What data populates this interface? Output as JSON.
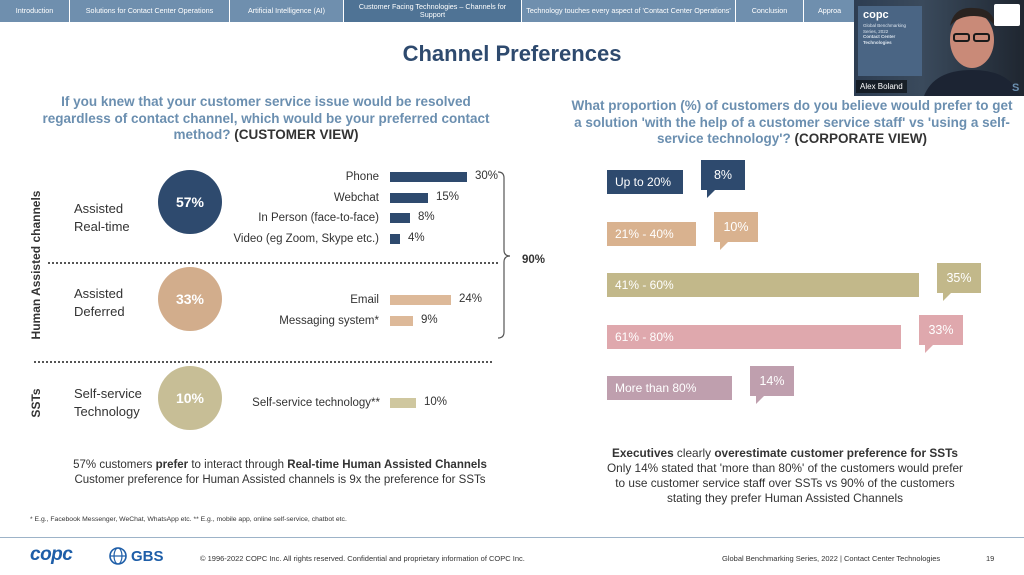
{
  "nav": {
    "tabs": [
      {
        "label": "Introduction"
      },
      {
        "label": "Solutions for Contact Center Operations"
      },
      {
        "label": "Artificial Intelligence (AI)"
      },
      {
        "label": "Customer Facing Technologies – Channels for Support"
      },
      {
        "label": "Technology touches every aspect of 'Contact Center Operations'"
      },
      {
        "label": "Conclusion"
      },
      {
        "label": "Approa"
      }
    ]
  },
  "title": "Channel Preferences",
  "left": {
    "question_main": "If you knew that your customer service issue would be resolved regardless of contact channel, which would be your preferred contact method?",
    "question_view": "(CUSTOMER VIEW)",
    "vertical_label_human": "Human Assisted channels",
    "vertical_label_ssts": "SSTs",
    "bracket_total": "90%",
    "groups": [
      {
        "label_line1": "Assisted",
        "label_line2": "Real-time",
        "pct": "57%",
        "color": "#2e4a6e"
      },
      {
        "label_line1": "Assisted",
        "label_line2": "Deferred",
        "pct": "33%",
        "color": "#d2ad8c"
      },
      {
        "label_line1": "Self-service",
        "label_line2": "Technology",
        "pct": "10%",
        "color": "#c7be96"
      }
    ],
    "bars": [
      {
        "label": "Phone",
        "value": 30,
        "pct": "30%",
        "color": "#2e4a6e"
      },
      {
        "label": "Webchat",
        "value": 15,
        "pct": "15%",
        "color": "#2e4a6e"
      },
      {
        "label": "In Person (face-to-face)",
        "value": 8,
        "pct": "8%",
        "color": "#2e4a6e"
      },
      {
        "label": "Video (eg Zoom, Skype etc.)",
        "value": 4,
        "pct": "4%",
        "color": "#2e4a6e"
      },
      {
        "label": "Email",
        "value": 24,
        "pct": "24%",
        "color": "#ddb999"
      },
      {
        "label": "Messaging system*",
        "value": 9,
        "pct": "9%",
        "color": "#ddb999"
      },
      {
        "label": "Self-service technology**",
        "value": 10,
        "pct": "10%",
        "color": "#cfc79f"
      }
    ],
    "note_line1_a": "57% customers ",
    "note_line1_b": "prefer",
    "note_line1_c": " to interact through ",
    "note_line1_d": "Real-time Human Assisted Channels",
    "note_line2": "Customer preference for Human Assisted channels is 9x the preference for SSTs",
    "footnote": "* E.g., Facebook Messenger, WeChat, WhatsApp etc.  ** E.g., mobile app, online self-service, chatbot etc."
  },
  "right": {
    "question_main": "What proportion (%) of customers do you believe would prefer to get a solution 'with the help of a customer service staff' vs 'using a self-service technology'?",
    "question_view": "(CORPORATE VIEW)",
    "rows": [
      {
        "label": "Up to 20%",
        "value": 8,
        "pct": "8%",
        "color": "#2e4a6e"
      },
      {
        "label": "21% - 40%",
        "value": 10,
        "pct": "10%",
        "color": "#d9b28f"
      },
      {
        "label": "41% - 60%",
        "value": 35,
        "pct": "35%",
        "color": "#c2b88a"
      },
      {
        "label": "61% - 80%",
        "value": 33,
        "pct": "33%",
        "color": "#dfa8ad"
      },
      {
        "label": "More than 80%",
        "value": 14,
        "pct": "14%",
        "color": "#bf9fae"
      }
    ],
    "note_a": "Executives",
    "note_b": " clearly ",
    "note_c": "overestimate customer preference for SSTs",
    "note_line2": "Only 14% stated that 'more than 80%' of the customers would prefer",
    "note_line3": "to use customer service staff over SSTs vs 90% of the customers",
    "note_line4": "stating they prefer Human Assisted Channels"
  },
  "video": {
    "name": "Alex Boland",
    "logo": "copc",
    "card_line1": "Global Benchmarking",
    "card_line2": "Series, 2022",
    "card_line3": "Contact Center",
    "card_line4": "Technologies",
    "suffix": "S"
  },
  "footer": {
    "logo_copc": "copc",
    "logo_gbs": "GBS",
    "copyright": "© 1996-2022 COPC Inc. All rights reserved. Confidential and proprietary information of COPC Inc.",
    "series": "Global Benchmarking Series, 2022  |  Contact Center Technologies",
    "page": "19"
  }
}
